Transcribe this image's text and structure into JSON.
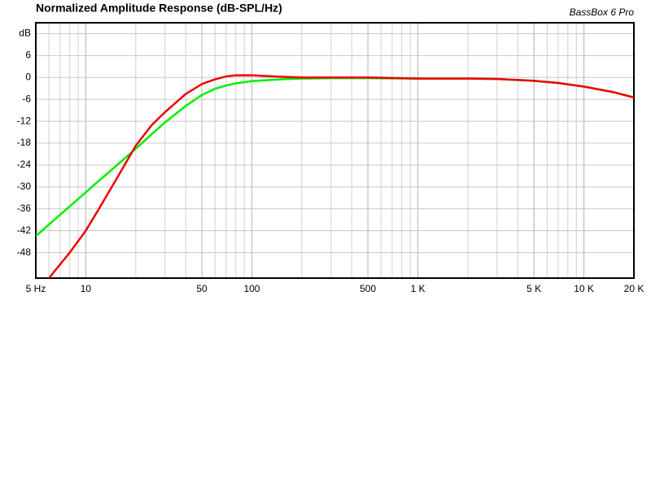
{
  "chart_data": {
    "type": "line",
    "title": "Normalized Amplitude Response (dB-SPL/Hz)",
    "annotation": "BassBox 6 Pro",
    "log_x": true,
    "grid": true,
    "xlim": [
      5,
      20000
    ],
    "ylim": [
      -55,
      15
    ],
    "xticks": [
      {
        "value": 5,
        "label": "5 Hz"
      },
      10,
      50,
      100,
      500,
      {
        "value": 1000,
        "label": "1 K"
      },
      {
        "value": 5000,
        "label": "5 K"
      },
      {
        "value": 10000,
        "label": "10 K"
      },
      {
        "value": 20000,
        "label": "20 K"
      }
    ],
    "yticks": [
      {
        "value": 12,
        "label": "dB"
      },
      6,
      0,
      -6,
      -12,
      -18,
      -24,
      -30,
      -36,
      -42,
      -48
    ],
    "x": [
      5,
      6,
      8,
      10,
      12,
      15,
      20,
      25,
      30,
      40,
      50,
      60,
      70,
      80,
      100,
      150,
      200,
      300,
      500,
      1000,
      2000,
      3000,
      5000,
      7000,
      10000,
      15000,
      20000
    ],
    "series": [
      {
        "color": "#00ee00",
        "values": [
          -43.5,
          -40.3,
          -35.3,
          -31.5,
          -28.3,
          -24.5,
          -19.5,
          -15.5,
          -12.3,
          -7.8,
          -4.8,
          -3.1,
          -2.2,
          -1.6,
          -1,
          -0.5,
          -0.3,
          -0.2,
          -0.2,
          -0.3,
          -0.3,
          -0.4,
          -0.9,
          -1.5,
          -2.5,
          -4,
          -5.5
        ]
      },
      {
        "color": "#ee0000",
        "values": [
          null,
          -55,
          -48,
          -42,
          -36,
          -28.5,
          -18.7,
          -13,
          -9.5,
          -4.5,
          -1.8,
          -0.5,
          0.3,
          0.6,
          0.6,
          0.2,
          0,
          0,
          0,
          -0.3,
          -0.3,
          -0.4,
          -0.9,
          -1.5,
          -2.5,
          -4,
          -5.5
        ]
      }
    ]
  }
}
